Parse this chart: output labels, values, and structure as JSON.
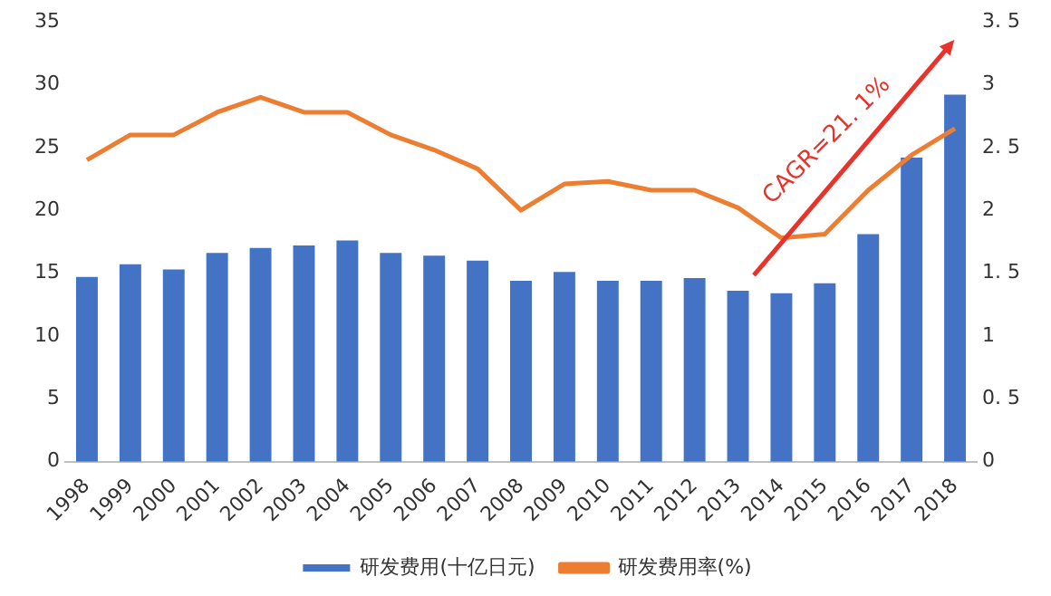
{
  "chart_data": {
    "type": "bar",
    "categories": [
      "1998",
      "1999",
      "2000",
      "2001",
      "2002",
      "2003",
      "2004",
      "2005",
      "2006",
      "2007",
      "2008",
      "2009",
      "2010",
      "2011",
      "2012",
      "2013",
      "2014",
      "2015",
      "2016",
      "2017",
      "2018"
    ],
    "series": [
      {
        "name": "研发费用(十亿日元)",
        "color": "#4472c4",
        "values": [
          14.7,
          15.7,
          15.3,
          16.6,
          17.0,
          17.2,
          17.6,
          16.6,
          16.4,
          16.0,
          14.4,
          15.1,
          14.4,
          14.4,
          14.6,
          13.6,
          13.4,
          14.2,
          18.1,
          24.2,
          29.2
        ]
      },
      {
        "name": "研发费用率(%)",
        "type": "line",
        "axis": "y2",
        "color": "#ed7d31",
        "values": [
          2.4,
          2.6,
          2.6,
          2.78,
          2.9,
          2.78,
          2.78,
          2.6,
          2.48,
          2.33,
          2.0,
          2.21,
          2.23,
          2.16,
          2.16,
          2.02,
          1.78,
          1.81,
          2.16,
          2.44,
          2.65
        ]
      }
    ],
    "ylim": [
      0,
      35
    ],
    "yticks": [
      0,
      5,
      10,
      15,
      20,
      25,
      30,
      35
    ],
    "y2lim": [
      0,
      3.5
    ],
    "y2ticks": [
      0,
      {
        "value": 0.5,
        "label": "0. 5"
      },
      1,
      {
        "value": 1.5,
        "label": "1. 5"
      },
      2,
      {
        "value": 2.5,
        "label": "2. 5"
      },
      3,
      {
        "value": 3.5,
        "label": "3. 5"
      }
    ],
    "grid": false,
    "legend": "bottom",
    "marker": "none",
    "annotations": [
      "CAGR=21. 1%"
    ]
  }
}
